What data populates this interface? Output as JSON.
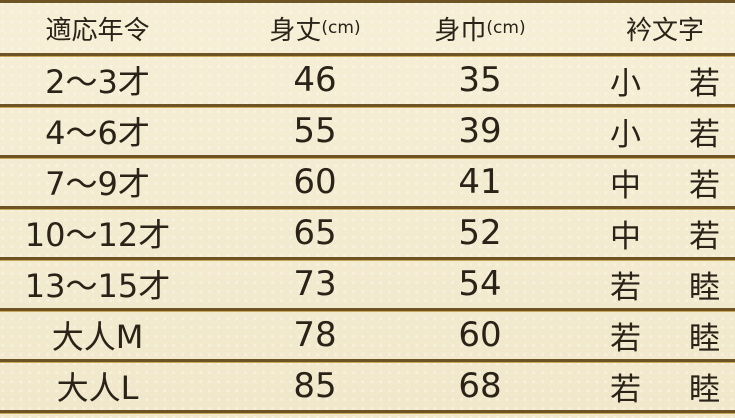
{
  "headers": {
    "age": "適応年令",
    "length": "身丈",
    "width": "身巾",
    "unit": "(cm)",
    "collar_text": "衿文字"
  },
  "rows": [
    {
      "age": "2〜3才",
      "length": "46",
      "width": "35",
      "collar": [
        "小",
        "若"
      ]
    },
    {
      "age": "4〜6才",
      "length": "55",
      "width": "39",
      "collar": [
        "小",
        "若"
      ]
    },
    {
      "age": "7〜9才",
      "length": "60",
      "width": "41",
      "collar": [
        "中",
        "若"
      ]
    },
    {
      "age": "10〜12才",
      "length": "65",
      "width": "52",
      "collar": [
        "中",
        "若"
      ]
    },
    {
      "age": "13〜15才",
      "length": "73",
      "width": "54",
      "collar": [
        "若",
        "睦"
      ]
    },
    {
      "age": "大人M",
      "length": "78",
      "width": "60",
      "collar": [
        "若",
        "睦"
      ]
    },
    {
      "age": "大人L",
      "length": "85",
      "width": "68",
      "collar": [
        "若",
        "睦"
      ]
    }
  ],
  "colors": {
    "background": "#f4ecd2",
    "rule": "#6e5424",
    "text": "#2b2218"
  }
}
